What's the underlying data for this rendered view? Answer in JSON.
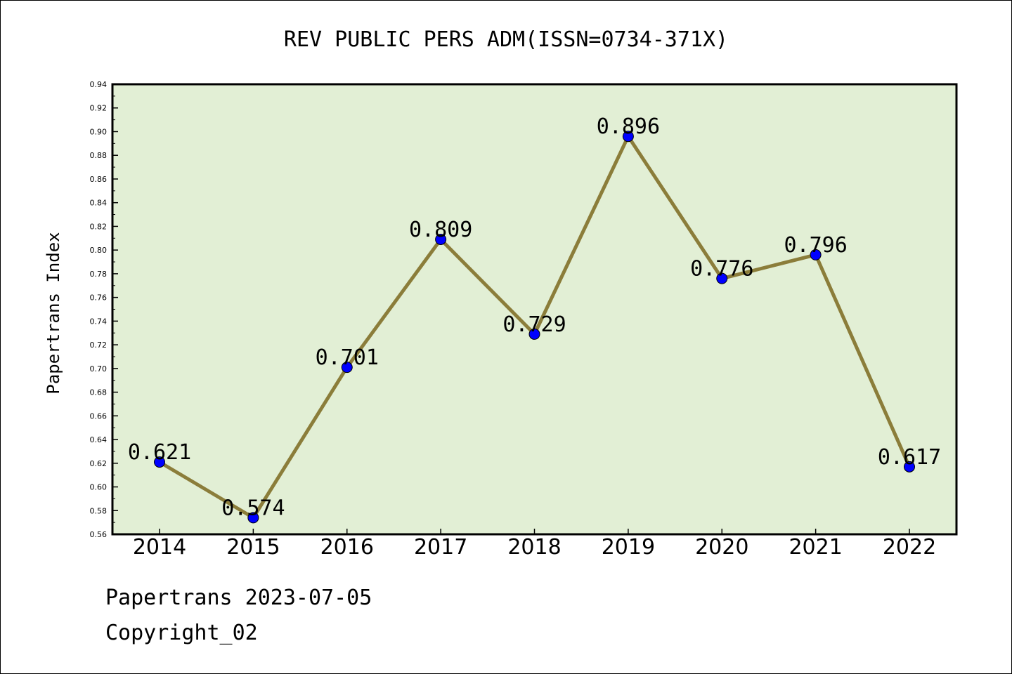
{
  "chart_data": {
    "type": "line",
    "title": "REV PUBLIC PERS ADM(ISSN=0734-371X)",
    "xlabel": "",
    "ylabel": "Papertrans Index",
    "categories": [
      "2014",
      "2015",
      "2016",
      "2017",
      "2018",
      "2019",
      "2020",
      "2021",
      "2022"
    ],
    "values": [
      0.621,
      0.574,
      0.701,
      0.809,
      0.729,
      0.896,
      0.776,
      0.796,
      0.617
    ],
    "data_labels": [
      "0.621",
      "0.574",
      "0.701",
      "0.809",
      "0.729",
      "0.896",
      "0.776",
      "0.796",
      "0.617"
    ],
    "ylim": [
      0.56,
      0.94
    ],
    "yticks": [
      "0.56",
      "0.58",
      "0.60",
      "0.62",
      "0.64",
      "0.66",
      "0.68",
      "0.70",
      "0.72",
      "0.74",
      "0.76",
      "0.78",
      "0.80",
      "0.82",
      "0.84",
      "0.86",
      "0.88",
      "0.90",
      "0.92",
      "0.94"
    ],
    "grid": false,
    "colors": {
      "plot_background": "#e2efd5",
      "line": "#8b7d3a",
      "marker": "#0000ff"
    }
  },
  "footer": {
    "line1": "Papertrans 2023-07-05",
    "line2": "Copyright_02"
  }
}
